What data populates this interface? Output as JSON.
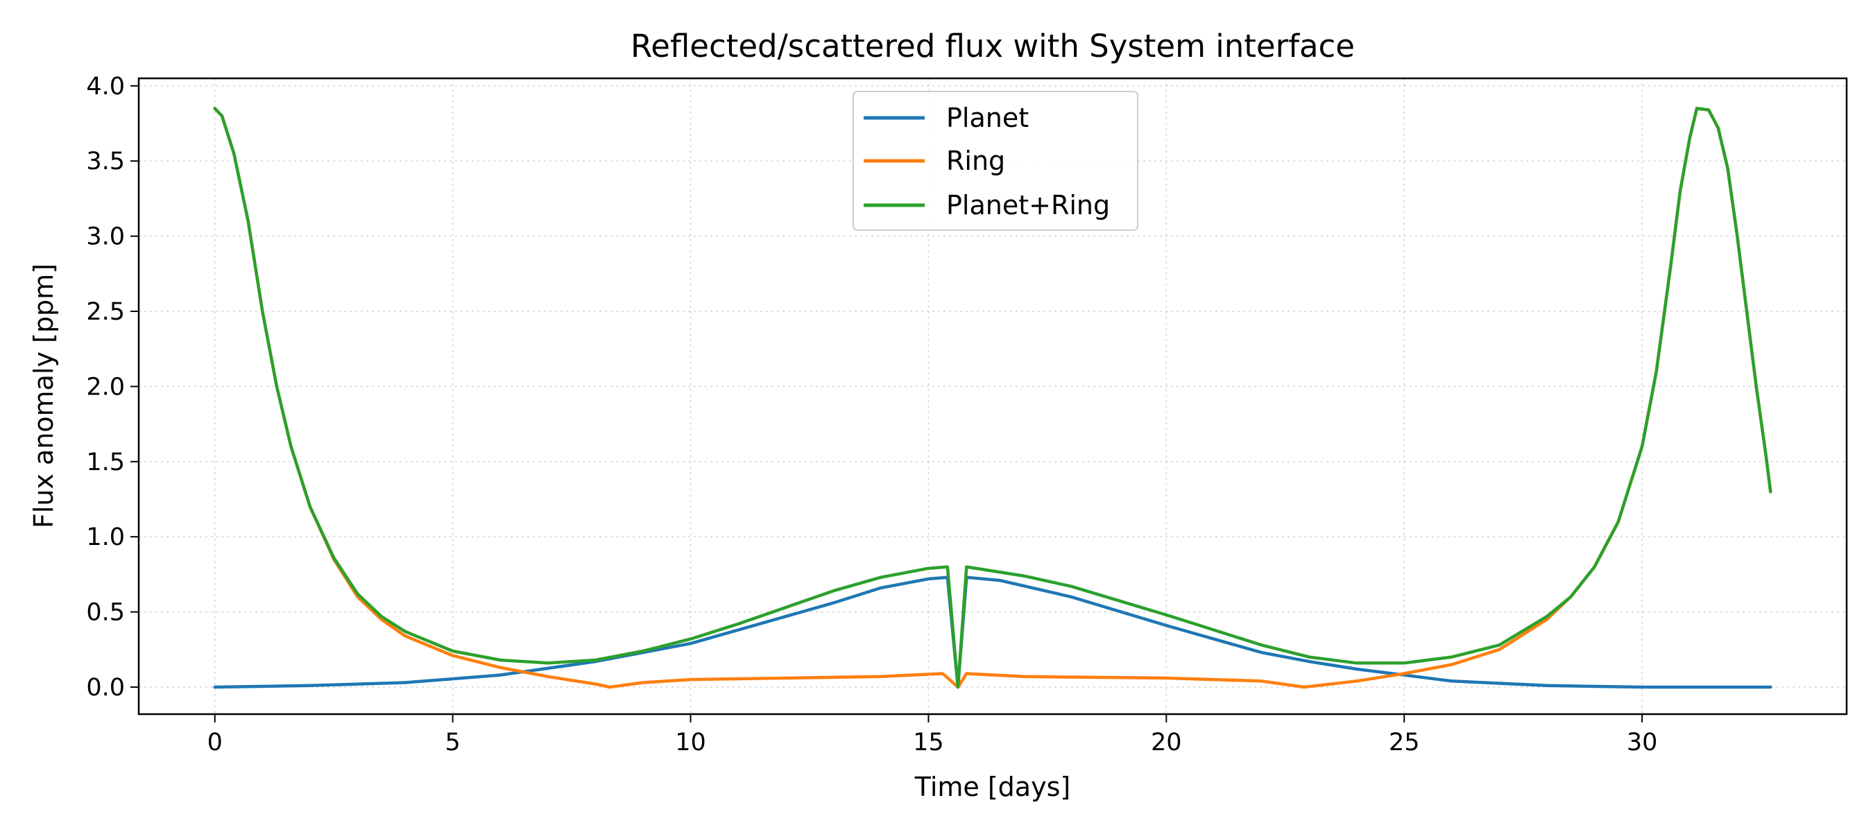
{
  "chart_data": {
    "type": "line",
    "title": "Reflected/scattered flux with System interface",
    "xlabel": "Time [days]",
    "ylabel": "Flux anomaly [ppm]",
    "xlim": [
      -1.6,
      34.3
    ],
    "ylim": [
      -0.18,
      4.05
    ],
    "xticks": [
      0,
      5,
      10,
      15,
      20,
      25,
      30
    ],
    "xtick_labels": [
      "0",
      "5",
      "10",
      "15",
      "20",
      "25",
      "30"
    ],
    "yticks": [
      0.0,
      0.5,
      1.0,
      1.5,
      2.0,
      2.5,
      3.0,
      3.5,
      4.0
    ],
    "ytick_labels": [
      "0.0",
      "0.5",
      "1.0",
      "1.5",
      "2.0",
      "2.5",
      "3.0",
      "3.5",
      "4.0"
    ],
    "grid": true,
    "legend_position": "top-center",
    "series": [
      {
        "name": "Planet",
        "color": "#1f77b4",
        "points": [
          [
            0,
            0.0
          ],
          [
            2,
            0.01
          ],
          [
            4,
            0.03
          ],
          [
            6,
            0.08
          ],
          [
            8,
            0.17
          ],
          [
            10,
            0.29
          ],
          [
            12,
            0.47
          ],
          [
            13,
            0.56
          ],
          [
            14,
            0.66
          ],
          [
            15,
            0.72
          ],
          [
            15.4,
            0.73
          ],
          [
            15.62,
            0.0
          ],
          [
            15.8,
            0.73
          ],
          [
            16.5,
            0.71
          ],
          [
            18,
            0.6
          ],
          [
            20,
            0.41
          ],
          [
            22,
            0.23
          ],
          [
            23,
            0.17
          ],
          [
            24,
            0.12
          ],
          [
            25,
            0.08
          ],
          [
            26,
            0.04
          ],
          [
            28,
            0.01
          ],
          [
            30,
            0.0
          ],
          [
            32.7,
            0.0
          ]
        ]
      },
      {
        "name": "Ring",
        "color": "#ff7f0e",
        "points": [
          [
            0,
            3.85
          ],
          [
            0.15,
            3.8
          ],
          [
            0.4,
            3.55
          ],
          [
            0.7,
            3.1
          ],
          [
            1,
            2.5
          ],
          [
            1.3,
            2.0
          ],
          [
            1.6,
            1.6
          ],
          [
            2,
            1.2
          ],
          [
            2.5,
            0.85
          ],
          [
            3,
            0.6
          ],
          [
            3.5,
            0.45
          ],
          [
            4,
            0.34
          ],
          [
            5,
            0.21
          ],
          [
            6,
            0.13
          ],
          [
            7,
            0.07
          ],
          [
            8,
            0.02
          ],
          [
            8.3,
            0.0
          ],
          [
            9,
            0.03
          ],
          [
            10,
            0.05
          ],
          [
            12,
            0.06
          ],
          [
            14,
            0.07
          ],
          [
            15.3,
            0.09
          ],
          [
            15.62,
            0.0
          ],
          [
            15.8,
            0.09
          ],
          [
            17,
            0.07
          ],
          [
            20,
            0.06
          ],
          [
            22,
            0.04
          ],
          [
            22.9,
            0.0
          ],
          [
            24,
            0.04
          ],
          [
            25,
            0.09
          ],
          [
            26,
            0.15
          ],
          [
            27,
            0.25
          ],
          [
            28,
            0.45
          ],
          [
            28.5,
            0.6
          ],
          [
            29,
            0.8
          ],
          [
            29.5,
            1.1
          ],
          [
            30,
            1.6
          ],
          [
            30.3,
            2.1
          ],
          [
            30.6,
            2.8
          ],
          [
            30.8,
            3.3
          ],
          [
            31,
            3.65
          ],
          [
            31.15,
            3.85
          ],
          [
            31.4,
            3.84
          ],
          [
            31.6,
            3.72
          ],
          [
            31.8,
            3.45
          ],
          [
            32,
            3.0
          ],
          [
            32.2,
            2.5
          ],
          [
            32.4,
            2.0
          ],
          [
            32.6,
            1.55
          ],
          [
            32.7,
            1.3
          ]
        ]
      },
      {
        "name": "Planet+Ring",
        "color": "#2ca02c",
        "points": [
          [
            0,
            3.85
          ],
          [
            0.15,
            3.8
          ],
          [
            0.4,
            3.55
          ],
          [
            0.7,
            3.1
          ],
          [
            1,
            2.5
          ],
          [
            1.3,
            2.0
          ],
          [
            1.6,
            1.6
          ],
          [
            2,
            1.2
          ],
          [
            2.5,
            0.86
          ],
          [
            3,
            0.62
          ],
          [
            3.5,
            0.47
          ],
          [
            4,
            0.37
          ],
          [
            5,
            0.24
          ],
          [
            6,
            0.18
          ],
          [
            7,
            0.16
          ],
          [
            8,
            0.18
          ],
          [
            9,
            0.24
          ],
          [
            10,
            0.32
          ],
          [
            11,
            0.42
          ],
          [
            12,
            0.53
          ],
          [
            13,
            0.64
          ],
          [
            14,
            0.73
          ],
          [
            15,
            0.79
          ],
          [
            15.4,
            0.8
          ],
          [
            15.62,
            0.0
          ],
          [
            15.8,
            0.8
          ],
          [
            17,
            0.74
          ],
          [
            18,
            0.67
          ],
          [
            20,
            0.48
          ],
          [
            22,
            0.28
          ],
          [
            23,
            0.2
          ],
          [
            24,
            0.16
          ],
          [
            25,
            0.16
          ],
          [
            26,
            0.2
          ],
          [
            27,
            0.28
          ],
          [
            28,
            0.47
          ],
          [
            28.5,
            0.6
          ],
          [
            29,
            0.8
          ],
          [
            29.5,
            1.1
          ],
          [
            30,
            1.6
          ],
          [
            30.3,
            2.1
          ],
          [
            30.6,
            2.8
          ],
          [
            30.8,
            3.3
          ],
          [
            31,
            3.65
          ],
          [
            31.15,
            3.85
          ],
          [
            31.4,
            3.84
          ],
          [
            31.6,
            3.72
          ],
          [
            31.8,
            3.45
          ],
          [
            32,
            3.0
          ],
          [
            32.2,
            2.5
          ],
          [
            32.4,
            2.0
          ],
          [
            32.6,
            1.55
          ],
          [
            32.7,
            1.3
          ]
        ]
      }
    ]
  }
}
